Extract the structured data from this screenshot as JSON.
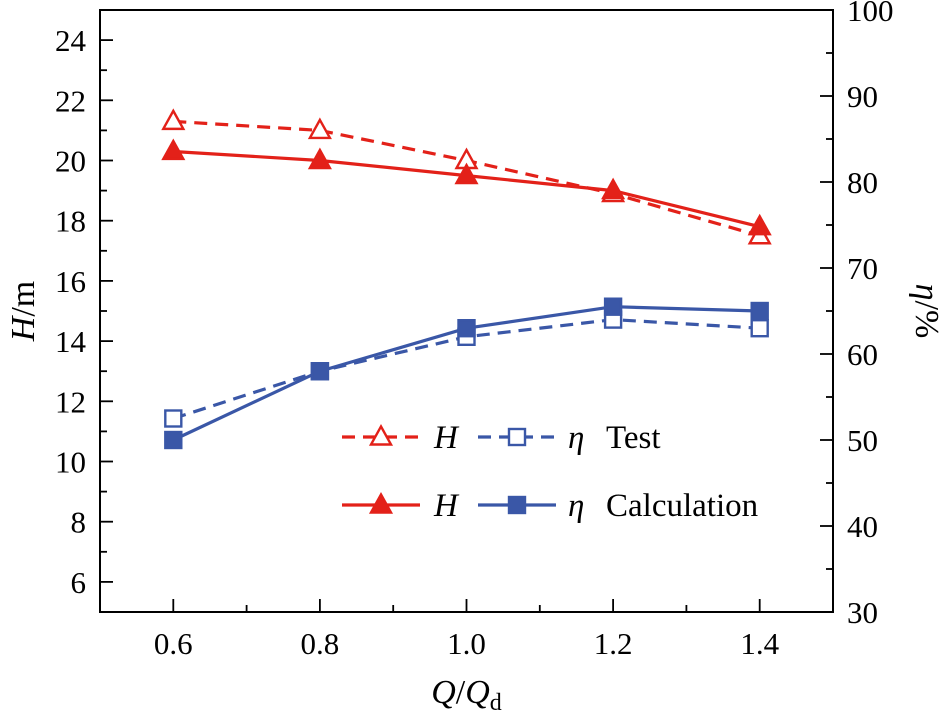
{
  "chart_data": {
    "type": "line",
    "x": [
      0.6,
      0.8,
      1.0,
      1.2,
      1.4
    ],
    "xlim": [
      0.5,
      1.5
    ],
    "xticks": [
      "0.6",
      "0.8",
      "1.0",
      "1.2",
      "1.4"
    ],
    "xlabel": {
      "var1": "Q",
      "slash": "/",
      "var2": "Q",
      "sub": "d"
    },
    "left_axis": {
      "label_var": "H",
      "label_unit": "/m",
      "lim": [
        5,
        25
      ],
      "ticks": [
        6,
        8,
        10,
        12,
        14,
        16,
        18,
        20,
        22,
        24
      ]
    },
    "right_axis": {
      "label_var": "η",
      "label_unit": "/%",
      "lim": [
        30,
        100
      ],
      "ticks": [
        30,
        40,
        50,
        60,
        70,
        80,
        90,
        100
      ]
    },
    "colors": {
      "H": "#e32119",
      "eta": "#3a57a7"
    },
    "series": [
      {
        "name": "H Test",
        "axis": "left",
        "color": "#e32119",
        "line": "dashed",
        "marker": "triangle",
        "fill": "open",
        "values": [
          21.3,
          21.0,
          20.0,
          18.9,
          17.5
        ]
      },
      {
        "name": "H Calculation",
        "axis": "left",
        "color": "#e32119",
        "line": "solid",
        "marker": "triangle",
        "fill": "solid",
        "values": [
          20.3,
          20.0,
          19.5,
          19.0,
          17.8
        ]
      },
      {
        "name": "eta Test",
        "axis": "right",
        "color": "#3a57a7",
        "line": "dashed",
        "marker": "square",
        "fill": "open",
        "values": [
          52.5,
          58.0,
          62.0,
          64.0,
          63.0
        ]
      },
      {
        "name": "eta Calculation",
        "axis": "right",
        "color": "#3a57a7",
        "line": "solid",
        "marker": "square",
        "fill": "solid",
        "values": [
          50.0,
          58.0,
          63.0,
          65.5,
          65.0
        ]
      }
    ],
    "legend": {
      "rows": [
        {
          "entries": [
            {
              "series": 0,
              "label": "H"
            },
            {
              "series": 2,
              "label": "η"
            }
          ],
          "suffix": "Test"
        },
        {
          "entries": [
            {
              "series": 1,
              "label": "H"
            },
            {
              "series": 3,
              "label": "η"
            }
          ],
          "suffix": "Calculation"
        }
      ],
      "legend_position": "inside lower-center-right"
    },
    "grid": false
  }
}
